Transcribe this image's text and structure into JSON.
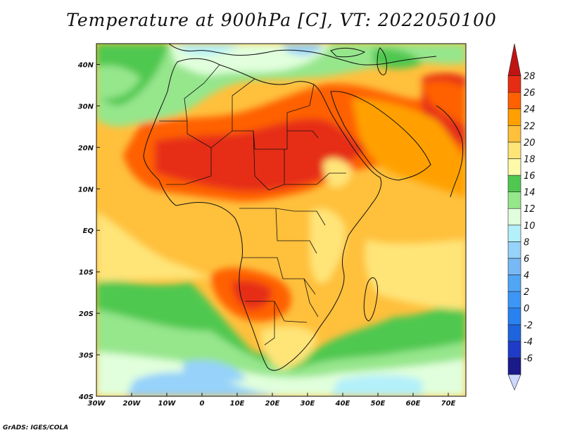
{
  "title": "Temperature at 900hPa [C], VT: 2022050100",
  "credit": "GrADS: IGES/COLA",
  "map": {
    "lon_range": [
      -30,
      75
    ],
    "lat_range": [
      -40,
      45
    ],
    "lon_ticks": [
      {
        "value": -30,
        "label": "30W"
      },
      {
        "value": -20,
        "label": "20W"
      },
      {
        "value": -10,
        "label": "10W"
      },
      {
        "value": 0,
        "label": "0"
      },
      {
        "value": 10,
        "label": "10E"
      },
      {
        "value": 20,
        "label": "20E"
      },
      {
        "value": 30,
        "label": "30E"
      },
      {
        "value": 40,
        "label": "40E"
      },
      {
        "value": 50,
        "label": "50E"
      },
      {
        "value": 60,
        "label": "60E"
      },
      {
        "value": 70,
        "label": "70E"
      }
    ],
    "lat_ticks": [
      {
        "value": 40,
        "label": "40N"
      },
      {
        "value": 30,
        "label": "30N"
      },
      {
        "value": 20,
        "label": "20N"
      },
      {
        "value": 10,
        "label": "10N"
      },
      {
        "value": 0,
        "label": "EQ"
      },
      {
        "value": -10,
        "label": "10S"
      },
      {
        "value": -20,
        "label": "20S"
      },
      {
        "value": -30,
        "label": "30S"
      },
      {
        "value": -40,
        "label": "40S"
      }
    ]
  },
  "colorbar": {
    "bins": [
      {
        "upper": -6,
        "color": "#1a1a8a"
      },
      {
        "upper": -4,
        "color": "#1e3cc8"
      },
      {
        "upper": -2,
        "color": "#1e64dc"
      },
      {
        "upper": 0,
        "color": "#2882f0"
      },
      {
        "upper": 2,
        "color": "#3c96f5"
      },
      {
        "upper": 4,
        "color": "#50a5f5"
      },
      {
        "upper": 6,
        "color": "#78b9f5"
      },
      {
        "upper": 8,
        "color": "#96d2fa"
      },
      {
        "upper": 10,
        "color": "#b4f0fa"
      },
      {
        "upper": 12,
        "color": "#e1ffdc"
      },
      {
        "upper": 14,
        "color": "#96e68c"
      },
      {
        "upper": 16,
        "color": "#50c850"
      },
      {
        "upper": 18,
        "color": "#fffaaa"
      },
      {
        "upper": 20,
        "color": "#ffe478"
      },
      {
        "upper": 22,
        "color": "#ffc03c"
      },
      {
        "upper": 24,
        "color": "#ffa000"
      },
      {
        "upper": 26,
        "color": "#ff6000"
      },
      {
        "upper": 28,
        "color": "#e62d14"
      },
      {
        "upper": null,
        "color": "#c01414"
      }
    ],
    "labels": [
      "-6",
      "-4",
      "-2",
      "0",
      "2",
      "4",
      "6",
      "8",
      "10",
      "12",
      "14",
      "16",
      "18",
      "20",
      "22",
      "24",
      "26",
      "28"
    ],
    "below_color": "#ccd8ff"
  }
}
